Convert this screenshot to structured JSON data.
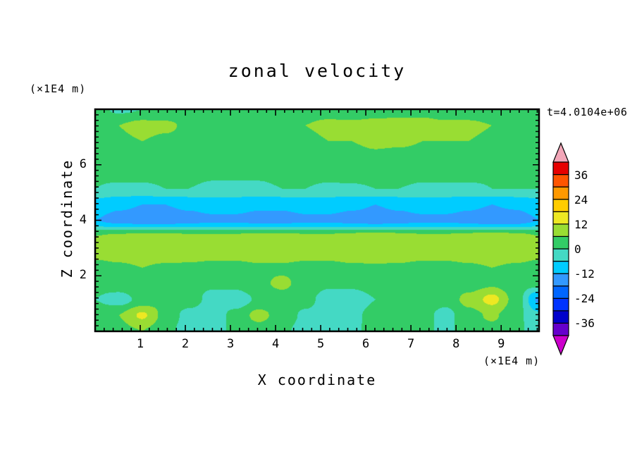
{
  "chart_data": {
    "type": "heatmap",
    "title": "zonal velocity",
    "xlabel": "X coordinate",
    "ylabel": "Z coordinate",
    "x_units": "(×1E4 m)",
    "y_units": "(×1E4 m)",
    "timestamp": "t=4.0104e+06",
    "x_range": [
      0,
      9.84
    ],
    "z_range": [
      0,
      8
    ],
    "x_ticks": [
      1,
      2,
      3,
      4,
      5,
      6,
      7,
      8,
      9
    ],
    "z_ticks": [
      2,
      4,
      6
    ],
    "minor_tick_step": 0.2,
    "levels": [
      -42,
      -36,
      -30,
      -24,
      -18,
      -12,
      -6,
      0,
      6,
      12,
      18,
      24,
      30,
      36,
      42
    ],
    "colors": [
      "#6600CC",
      "#0000CC",
      "#0033FF",
      "#0066FF",
      "#3399FF",
      "#00CCFF",
      "#44D9C4",
      "#33CC66",
      "#99DD33",
      "#EEE822",
      "#FFCC00",
      "#FF9900",
      "#FF5500",
      "#E60000"
    ],
    "below_color": "#CC00CC",
    "above_color": "#F2A6B8",
    "colorbar_labels": [
      36,
      24,
      12,
      0,
      -12,
      -24,
      -36
    ],
    "legend_position": "right",
    "grid": {
      "x": [
        0,
        0.52,
        1.04,
        1.55,
        2.07,
        2.59,
        3.11,
        3.63,
        4.14,
        4.66,
        5.18,
        5.7,
        6.22,
        6.73,
        7.25,
        7.77,
        8.29,
        8.81,
        9.32,
        9.84
      ],
      "z": [
        8.0,
        7.43,
        6.86,
        6.29,
        5.71,
        5.14,
        4.57,
        4.0,
        3.43,
        2.86,
        2.29,
        1.71,
        1.14,
        0.57,
        0.0
      ],
      "values": [
        [
          2,
          -1,
          0,
          2,
          3,
          3,
          2,
          3,
          3,
          4,
          4,
          3,
          3,
          4,
          4,
          3,
          3,
          2,
          2,
          2
        ],
        [
          4,
          6,
          8,
          7,
          5,
          4,
          4,
          5,
          6,
          6,
          7,
          7,
          8,
          8,
          8,
          7,
          7,
          6,
          5,
          4
        ],
        [
          3,
          5,
          6,
          5,
          4,
          3,
          4,
          4,
          5,
          5,
          6,
          6,
          7,
          7,
          6,
          6,
          6,
          5,
          4,
          3
        ],
        [
          2,
          3,
          4,
          3,
          3,
          2,
          2,
          3,
          3,
          3,
          4,
          4,
          5,
          4,
          4,
          4,
          3,
          3,
          3,
          2
        ],
        [
          1,
          2,
          2,
          2,
          2,
          1,
          1,
          1,
          2,
          2,
          2,
          3,
          3,
          3,
          2,
          2,
          2,
          1,
          1,
          1
        ],
        [
          0,
          -1,
          -1,
          0,
          0,
          -1,
          -1,
          -1,
          0,
          0,
          -1,
          -1,
          0,
          0,
          -1,
          -1,
          -1,
          0,
          0,
          0
        ],
        [
          -9,
          -11,
          -12,
          -12,
          -11,
          -10,
          -10,
          -11,
          -11,
          -10,
          -10,
          -11,
          -12,
          -11,
          -10,
          -10,
          -11,
          -12,
          -11,
          -9
        ],
        [
          -12,
          -14,
          -15,
          -15,
          -14,
          -13,
          -13,
          -14,
          -14,
          -13,
          -13,
          -14,
          -15,
          -14,
          -13,
          -13,
          -14,
          -16,
          -15,
          -12
        ],
        [
          6,
          7,
          8,
          8,
          7,
          7,
          7,
          8,
          8,
          7,
          7,
          8,
          9,
          8,
          7,
          7,
          8,
          9,
          8,
          6
        ],
        [
          8,
          9,
          10,
          10,
          9,
          9,
          9,
          10,
          10,
          9,
          9,
          10,
          11,
          10,
          9,
          9,
          10,
          11,
          10,
          8
        ],
        [
          4,
          5,
          6,
          5,
          5,
          4,
          4,
          5,
          5,
          4,
          4,
          5,
          5,
          5,
          4,
          4,
          5,
          6,
          5,
          4
        ],
        [
          2,
          4,
          6,
          3,
          2,
          1,
          2,
          5,
          7,
          4,
          1,
          2,
          4,
          6,
          3,
          1,
          3,
          5,
          2,
          2
        ],
        [
          0,
          -3,
          2,
          5,
          3,
          -2,
          -4,
          1,
          4,
          2,
          -3,
          -5,
          0,
          3,
          5,
          2,
          8,
          14,
          4,
          -13
        ],
        [
          3,
          6,
          13,
          4,
          -2,
          -4,
          2,
          8,
          3,
          -1,
          -4,
          -2,
          3,
          6,
          2,
          -2,
          4,
          7,
          2,
          -5
        ],
        [
          1,
          4,
          6,
          2,
          -3,
          -2,
          1,
          3,
          1,
          -2,
          -3,
          -1,
          2,
          4,
          1,
          -1,
          2,
          4,
          1,
          -2
        ]
      ]
    }
  }
}
